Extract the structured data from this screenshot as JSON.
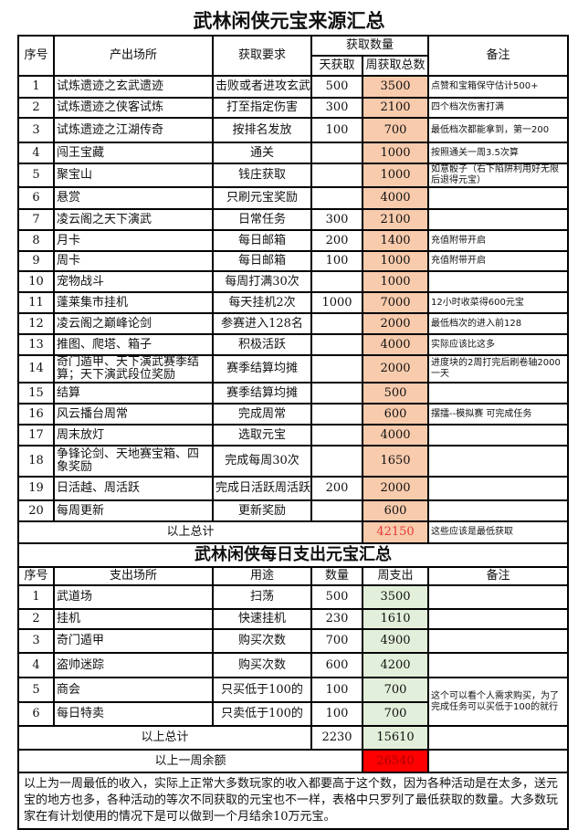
{
  "income": {
    "title": "武林闲侠元宝来源汇总",
    "headers": {
      "no": "序号",
      "place": "产出场所",
      "req": "获取要求",
      "amount": "获取数量",
      "daily": "天获取",
      "weekly": "周获取总数",
      "note": "备注"
    },
    "rows": [
      {
        "no": "1",
        "place": "试炼遗迹之玄武遗迹",
        "req": "击败或者进攻玄武",
        "daily": "500",
        "weekly": "3500",
        "note": "点赞和宝箱保守估计500+"
      },
      {
        "no": "2",
        "place": "试炼遗迹之侠客试炼",
        "req": "打至指定伤害",
        "daily": "300",
        "weekly": "2100",
        "note": "四个档次伤害打满"
      },
      {
        "no": "3",
        "place": "试炼遗迹之江湖传奇",
        "req": "按排名发放",
        "daily": "100",
        "weekly": "700",
        "note": "最低档次都能拿到，第一200"
      },
      {
        "no": "4",
        "place": "闯王宝藏",
        "req": "通关",
        "daily": "",
        "weekly": "1000",
        "note": "按照通关一周3.5次算"
      },
      {
        "no": "5",
        "place": "聚宝山",
        "req": "钱庄获取",
        "daily": "",
        "weekly": "1000",
        "note": "如意骰子（右下陷阱利用好无限后退得元宝）"
      },
      {
        "no": "6",
        "place": "悬赏",
        "req": "只刷元宝奖励",
        "daily": "",
        "weekly": "4000",
        "note": ""
      },
      {
        "no": "7",
        "place": "凌云阁之天下演武",
        "req": "日常任务",
        "daily": "300",
        "weekly": "2100",
        "note": ""
      },
      {
        "no": "8",
        "place": "月卡",
        "req": "每日邮箱",
        "daily": "200",
        "weekly": "1400",
        "note": "充值附带开启"
      },
      {
        "no": "9",
        "place": "周卡",
        "req": "每日邮箱",
        "daily": "100",
        "weekly": "1000",
        "note": "充值附带开启"
      },
      {
        "no": "10",
        "place": "宠物战斗",
        "req": "每周打满30次",
        "daily": "",
        "weekly": "1000",
        "note": ""
      },
      {
        "no": "11",
        "place": "蓬莱集市挂机",
        "req": "每天挂机2次",
        "daily": "1000",
        "weekly": "7000",
        "note": "12小时收菜得600元宝"
      },
      {
        "no": "12",
        "place": "凌云阁之巅峰论剑",
        "req": "参赛进入128名",
        "daily": "",
        "weekly": "2000",
        "note": "最低档次的进入前128"
      },
      {
        "no": "13",
        "place": "推图、爬塔、箱子",
        "req": "积极活跃",
        "daily": "",
        "weekly": "4000",
        "note": "实际应该比这多"
      },
      {
        "no": "14",
        "place": "奇门遁甲、天下演武赛季结算；天下演武段位奖励",
        "req": "赛季结算均摊",
        "daily": "",
        "weekly": "2000",
        "note": "进度块的2周打完后刷卷轴2000一天"
      },
      {
        "no": "15",
        "place": "结算",
        "req": "赛季结算均摊",
        "daily": "",
        "weekly": "500",
        "note": ""
      },
      {
        "no": "16",
        "place": "风云播台周常",
        "req": "完成周常",
        "daily": "",
        "weekly": "600",
        "note": "摆擂--模拟赛 可完成任务"
      },
      {
        "no": "17",
        "place": "周末放灯",
        "req": "选取元宝",
        "daily": "",
        "weekly": "4000",
        "note": ""
      },
      {
        "no": "18",
        "place": "争锋论剑、天地赛宝箱、四象奖励",
        "req": "完成每周30次",
        "daily": "",
        "weekly": "1650",
        "note": ""
      },
      {
        "no": "19",
        "place": "日活越、周活跃",
        "req": "完成日活跃周活跃",
        "daily": "200",
        "weekly": "2000",
        "note": ""
      },
      {
        "no": "20",
        "place": "每周更新",
        "req": "更新奖励",
        "daily": "",
        "weekly": "600",
        "note": ""
      }
    ],
    "total_label": "以上总计",
    "total_weekly": "42150",
    "total_note": "这些应该是最低获取"
  },
  "expense": {
    "title": "武林闲侠每日支出元宝汇总",
    "headers": {
      "no": "序号",
      "place": "支出场所",
      "use": "用途",
      "qty": "数量",
      "weekly": "周支出",
      "note": "备注"
    },
    "rows": [
      {
        "no": "1",
        "place": "武道场",
        "use": "扫荡",
        "qty": "500",
        "weekly": "3500"
      },
      {
        "no": "2",
        "place": "挂机",
        "use": "快速挂机",
        "qty": "230",
        "weekly": "1610"
      },
      {
        "no": "3",
        "place": "奇门遁甲",
        "use": "购买次数",
        "qty": "700",
        "weekly": "4900"
      },
      {
        "no": "4",
        "place": "盗帅迷踪",
        "use": "购买次数",
        "qty": "600",
        "weekly": "4200"
      },
      {
        "no": "5",
        "place": "商会",
        "use": "只买低于100的",
        "qty": "100",
        "weekly": "700"
      },
      {
        "no": "6",
        "place": "每日特卖",
        "use": "只卖低于100的",
        "qty": "100",
        "weekly": "700"
      }
    ],
    "merged_note": "这个可以看个人需求购买，为了完成任务可以买低于100的就行",
    "total_label": "以上总计",
    "total_qty": "2230",
    "total_weekly": "15610",
    "balance_label": "以上一周余额",
    "balance": "26540"
  },
  "footnote": "以上为一周最低的收入，实际上正常大多数玩家的收入都要高于这个数，因为各种活动是在太多，送元宝的地方也多，各种活动的等次不同获取的元宝也不一样，表格中只罗列了最低获取的数量。大多数玩家在有计划使用的情况下是可以做到一个月结余10万元宝。",
  "colors": {
    "weekly_income": "#f8cbad",
    "weekly_expense": "#e2efda",
    "balance": "#ff0000",
    "total_text": "#e53935"
  }
}
